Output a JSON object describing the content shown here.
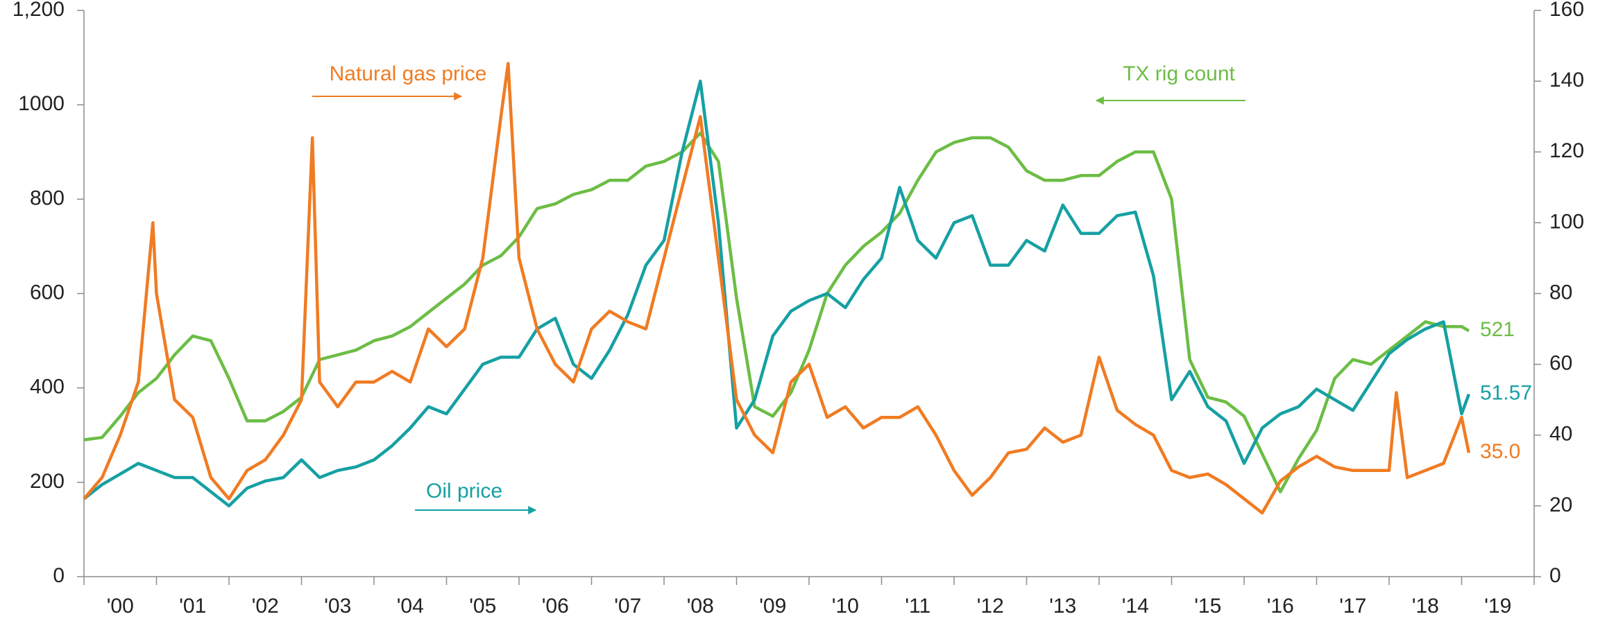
{
  "chart_data": {
    "type": "line",
    "xlim": [
      2000,
      2020
    ],
    "xticks": [
      {
        "value": 2000.5,
        "label": "'00"
      },
      {
        "value": 2001.5,
        "label": "'01"
      },
      {
        "value": 2002.5,
        "label": "'02"
      },
      {
        "value": 2003.5,
        "label": "'03"
      },
      {
        "value": 2004.5,
        "label": "'04"
      },
      {
        "value": 2005.5,
        "label": "'05"
      },
      {
        "value": 2006.5,
        "label": "'06"
      },
      {
        "value": 2007.5,
        "label": "'07"
      },
      {
        "value": 2008.5,
        "label": "'08"
      },
      {
        "value": 2009.5,
        "label": "'09"
      },
      {
        "value": 2010.5,
        "label": "'10"
      },
      {
        "value": 2011.5,
        "label": "'11"
      },
      {
        "value": 2012.5,
        "label": "'12"
      },
      {
        "value": 2013.5,
        "label": "'13"
      },
      {
        "value": 2014.5,
        "label": "'14"
      },
      {
        "value": 2015.5,
        "label": "'15"
      },
      {
        "value": 2016.5,
        "label": "'16"
      },
      {
        "value": 2017.5,
        "label": "'17"
      },
      {
        "value": 2018.5,
        "label": "'18"
      },
      {
        "value": 2019.5,
        "label": "'19"
      }
    ],
    "ylim": [
      0,
      1200
    ],
    "yticks": [
      0,
      200,
      400,
      600,
      800,
      1000,
      {
        "value": 1200,
        "label": "1,200"
      }
    ],
    "y2lim": [
      0,
      160
    ],
    "y2ticks": [
      0,
      20,
      40,
      60,
      80,
      100,
      120,
      140,
      160
    ],
    "series": [
      {
        "name": "TX rig count",
        "color": "#6cbd45",
        "axis": "y",
        "x": [
          2000,
          2000.25,
          2000.5,
          2000.75,
          2001,
          2001.25,
          2001.5,
          2001.75,
          2002,
          2002.25,
          2002.5,
          2002.75,
          2003,
          2003.25,
          2003.5,
          2003.75,
          2004,
          2004.25,
          2004.5,
          2004.75,
          2005,
          2005.25,
          2005.5,
          2005.75,
          2006,
          2006.25,
          2006.5,
          2006.75,
          2007,
          2007.25,
          2007.5,
          2007.75,
          2008,
          2008.25,
          2008.5,
          2008.75,
          2009,
          2009.25,
          2009.5,
          2009.75,
          2010,
          2010.25,
          2010.5,
          2010.75,
          2011,
          2011.25,
          2011.5,
          2011.75,
          2012,
          2012.25,
          2012.5,
          2012.75,
          2013,
          2013.25,
          2013.5,
          2013.75,
          2014,
          2014.25,
          2014.5,
          2014.75,
          2015,
          2015.25,
          2015.5,
          2015.75,
          2016,
          2016.25,
          2016.5,
          2016.75,
          2017,
          2017.25,
          2017.5,
          2017.75,
          2018,
          2018.25,
          2018.5,
          2018.75,
          2019,
          2019.1
        ],
        "values": [
          290,
          295,
          340,
          390,
          420,
          470,
          510,
          500,
          420,
          330,
          330,
          350,
          380,
          460,
          470,
          480,
          500,
          510,
          530,
          560,
          590,
          620,
          660,
          680,
          720,
          780,
          790,
          810,
          820,
          840,
          840,
          870,
          880,
          900,
          940,
          880,
          590,
          360,
          340,
          390,
          480,
          600,
          660,
          700,
          730,
          770,
          840,
          900,
          920,
          930,
          930,
          910,
          860,
          840,
          840,
          850,
          850,
          880,
          900,
          900,
          800,
          460,
          380,
          370,
          340,
          260,
          180,
          250,
          310,
          420,
          460,
          450,
          480,
          510,
          540,
          530,
          530,
          521
        ]
      },
      {
        "name": "Oil price",
        "color": "#16a0a3",
        "axis": "y2",
        "x": [
          2000,
          2000.25,
          2000.5,
          2000.75,
          2001,
          2001.25,
          2001.5,
          2001.75,
          2002,
          2002.25,
          2002.5,
          2002.75,
          2003,
          2003.25,
          2003.5,
          2003.75,
          2004,
          2004.25,
          2004.5,
          2004.75,
          2005,
          2005.25,
          2005.5,
          2005.75,
          2006,
          2006.25,
          2006.5,
          2006.75,
          2007,
          2007.25,
          2007.5,
          2007.75,
          2008,
          2008.25,
          2008.5,
          2008.75,
          2009,
          2009.25,
          2009.5,
          2009.75,
          2010,
          2010.25,
          2010.5,
          2010.75,
          2011,
          2011.25,
          2011.5,
          2011.75,
          2012,
          2012.25,
          2012.5,
          2012.75,
          2013,
          2013.25,
          2013.5,
          2013.75,
          2014,
          2014.25,
          2014.5,
          2014.75,
          2015,
          2015.25,
          2015.5,
          2015.75,
          2016,
          2016.25,
          2016.5,
          2016.75,
          2017,
          2017.25,
          2017.5,
          2017.75,
          2018,
          2018.25,
          2018.5,
          2018.75,
          2019,
          2019.1
        ],
        "values": [
          22,
          26,
          29,
          32,
          30,
          28,
          28,
          24,
          20,
          25,
          27,
          28,
          33,
          28,
          30,
          31,
          33,
          37,
          42,
          48,
          46,
          53,
          60,
          62,
          62,
          70,
          73,
          60,
          56,
          64,
          74,
          88,
          95,
          120,
          140,
          100,
          42,
          50,
          68,
          75,
          78,
          80,
          76,
          84,
          90,
          110,
          95,
          90,
          100,
          102,
          88,
          88,
          95,
          92,
          105,
          97,
          97,
          102,
          103,
          85,
          50,
          58,
          48,
          44,
          32,
          42,
          46,
          48,
          53,
          50,
          47,
          55,
          63,
          67,
          70,
          72,
          46,
          51.57
        ]
      },
      {
        "name": "Natural gas price",
        "color": "#f07b22",
        "axis": "y2",
        "x": [
          2000,
          2000.25,
          2000.5,
          2000.75,
          2000.95,
          2001,
          2001.25,
          2001.5,
          2001.75,
          2002,
          2002.25,
          2002.5,
          2002.75,
          2003,
          2003.15,
          2003.25,
          2003.5,
          2003.75,
          2004,
          2004.25,
          2004.5,
          2004.75,
          2005,
          2005.25,
          2005.5,
          2005.75,
          2005.85,
          2006,
          2006.25,
          2006.5,
          2006.75,
          2007,
          2007.25,
          2007.5,
          2007.75,
          2008,
          2008.25,
          2008.5,
          2008.75,
          2009,
          2009.25,
          2009.5,
          2009.75,
          2010,
          2010.25,
          2010.5,
          2010.75,
          2011,
          2011.25,
          2011.5,
          2011.75,
          2012,
          2012.25,
          2012.5,
          2012.75,
          2013,
          2013.25,
          2013.5,
          2013.75,
          2014,
          2014.25,
          2014.5,
          2014.75,
          2015,
          2015.25,
          2015.5,
          2015.75,
          2016,
          2016.25,
          2016.5,
          2016.75,
          2017,
          2017.25,
          2017.5,
          2017.75,
          2018,
          2018.1,
          2018.25,
          2018.5,
          2018.75,
          2019,
          2019.1
        ],
        "values": [
          22,
          28,
          40,
          55,
          100,
          80,
          50,
          45,
          28,
          22,
          30,
          33,
          40,
          50,
          124,
          55,
          48,
          55,
          55,
          58,
          55,
          70,
          65,
          70,
          90,
          130,
          145,
          90,
          70,
          60,
          55,
          70,
          75,
          72,
          70,
          90,
          110,
          130,
          90,
          50,
          40,
          35,
          55,
          60,
          45,
          48,
          42,
          45,
          45,
          48,
          40,
          30,
          23,
          28,
          35,
          36,
          42,
          38,
          40,
          62,
          47,
          43,
          40,
          30,
          28,
          29,
          26,
          22,
          18,
          27,
          31,
          34,
          31,
          30,
          30,
          30,
          52,
          28,
          30,
          32,
          45,
          35
        ],
        "value_labels": [
          null,
          null,
          null,
          null,
          null,
          null,
          null,
          null,
          null,
          null,
          null,
          null,
          null,
          null,
          null,
          null,
          null,
          null,
          null,
          null,
          null,
          null,
          null,
          null,
          null,
          null,
          null,
          null,
          null,
          null,
          null,
          null,
          null,
          null,
          null,
          null,
          null,
          null,
          null,
          null,
          null,
          null,
          null,
          null,
          null,
          null,
          null,
          null,
          null,
          null,
          null,
          null,
          null,
          null,
          null,
          null,
          null,
          null,
          null,
          null,
          null,
          null,
          null,
          null,
          null,
          null,
          null,
          null,
          null,
          null,
          null,
          null,
          null,
          null,
          null,
          null,
          null,
          null,
          null,
          null,
          null,
          "35.0"
        ]
      }
    ]
  }
}
